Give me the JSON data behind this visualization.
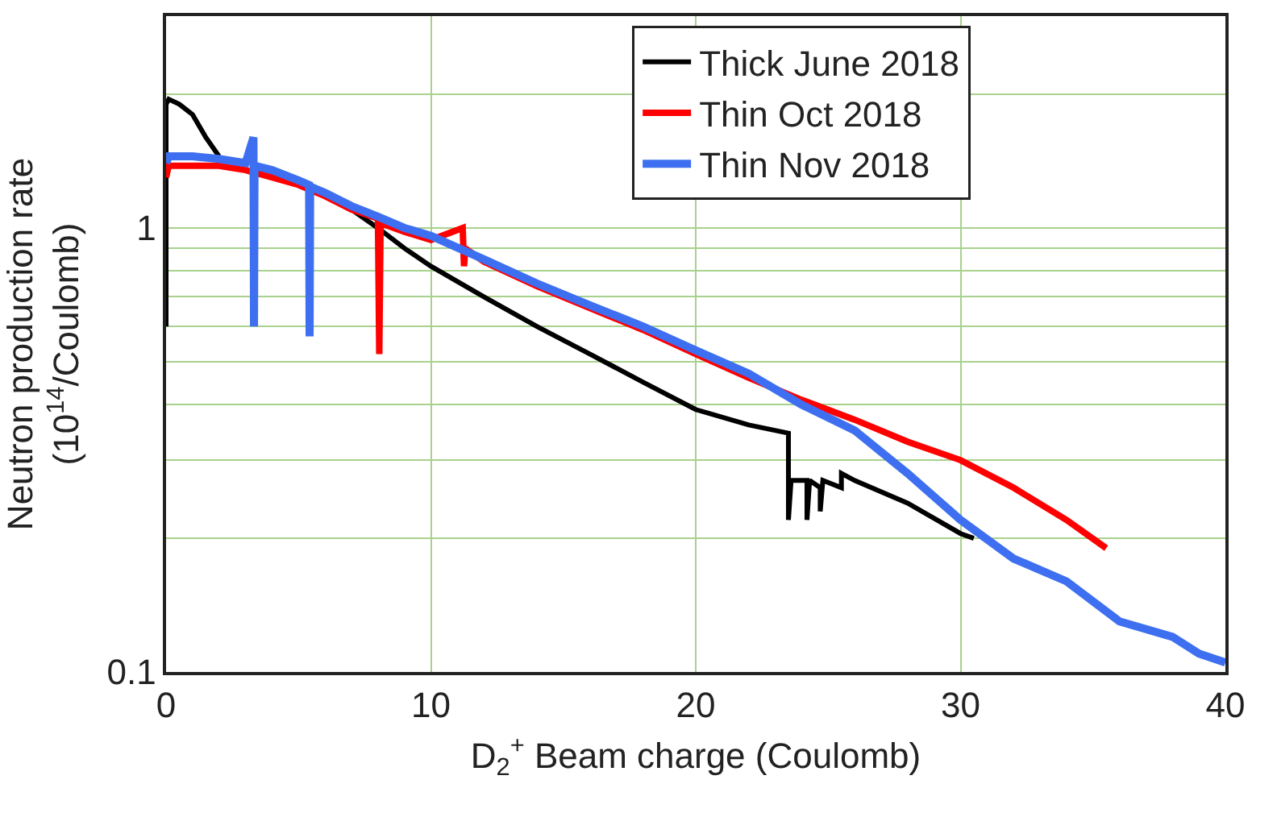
{
  "chart_data": {
    "type": "line",
    "xlabel": "D$_{2}$$^{+}$ Beam charge (Coulomb)",
    "ylabel": "Neutron production rate\n(10$^{14}$/Coulomb)",
    "xlim": [
      0,
      40
    ],
    "xticks": [
      0,
      10,
      20,
      30,
      40
    ],
    "ylim": [
      0.1,
      3
    ],
    "yticks": [
      0.1,
      {
        "value": 0.2,
        "label": null
      },
      {
        "value": 0.3,
        "label": null
      },
      {
        "value": 0.4,
        "label": null
      },
      {
        "value": 0.5,
        "label": null
      },
      {
        "value": 0.6,
        "label": null
      },
      {
        "value": 0.7,
        "label": null
      },
      {
        "value": 0.8,
        "label": null
      },
      {
        "value": 0.9,
        "label": null
      },
      1,
      {
        "value": 2,
        "label": null
      },
      {
        "value": 3,
        "label": null
      }
    ],
    "log": "y",
    "grid": true,
    "legend": "top right",
    "marker": "none",
    "line_style": "solid",
    "series": [
      {
        "name": "Thick June 2018",
        "color": "#000000",
        "x": [
          0,
          0,
          0.1,
          0.5,
          1,
          1.5,
          2,
          2.5,
          3,
          4,
          5,
          6,
          7,
          8,
          9,
          10,
          12,
          14,
          16,
          18,
          20,
          22,
          23.5,
          23.5,
          23.6,
          24.2,
          24.2,
          24.3,
          24.7,
          24.7,
          24.8,
          25.5,
          25.5,
          26,
          28,
          30,
          30.5
        ],
        "values": [
          0.6,
          1.9,
          1.95,
          1.9,
          1.8,
          1.6,
          1.45,
          null,
          null,
          null,
          null,
          null,
          1.1,
          1.0,
          0.9,
          0.82,
          0.7,
          0.6,
          0.52,
          0.45,
          0.39,
          0.36,
          0.345,
          0.22,
          0.27,
          0.27,
          0.22,
          0.27,
          0.26,
          0.23,
          0.27,
          0.26,
          0.28,
          0.27,
          0.24,
          0.205,
          0.2
        ]
      },
      {
        "name": "Thin Oct 2018",
        "color": "#ff0000",
        "x": [
          0,
          0.1,
          1,
          2,
          3,
          4,
          5,
          6,
          7,
          8,
          8.05,
          8.1,
          8.2,
          9,
          10,
          11.2,
          11.25,
          11.3,
          12,
          14,
          16,
          18,
          20,
          22,
          24,
          26,
          28,
          30,
          32,
          34,
          35.5
        ],
        "values": [
          1.3,
          1.38,
          1.38,
          1.38,
          1.35,
          1.3,
          1.25,
          1.18,
          1.1,
          1.05,
          0.52,
          1.03,
          1.02,
          0.98,
          0.94,
          1.0,
          0.82,
          0.9,
          0.84,
          0.74,
          0.66,
          0.59,
          0.52,
          0.46,
          0.41,
          0.37,
          0.33,
          0.3,
          0.26,
          0.22,
          0.19
        ]
      },
      {
        "name": "Thin Nov 2018",
        "color": "#3d6ff0",
        "x": [
          0,
          0.1,
          1,
          2,
          3,
          3.3,
          3.32,
          3.34,
          3.36,
          4,
          5,
          5.4,
          5.42,
          5.44,
          6,
          7,
          8,
          9,
          10,
          12,
          14,
          16,
          18,
          20,
          22,
          24,
          26,
          28,
          30,
          32,
          34,
          36,
          38,
          39,
          40
        ],
        "values": [
          1.4,
          1.45,
          1.45,
          1.43,
          1.4,
          1.6,
          0.6,
          1.38,
          1.38,
          1.35,
          1.28,
          1.25,
          0.57,
          1.24,
          1.2,
          1.12,
          1.06,
          1.0,
          0.96,
          0.85,
          0.75,
          0.67,
          0.6,
          0.53,
          0.47,
          0.4,
          0.35,
          0.28,
          0.22,
          0.18,
          0.16,
          0.13,
          0.12,
          0.11,
          0.105
        ]
      }
    ]
  }
}
